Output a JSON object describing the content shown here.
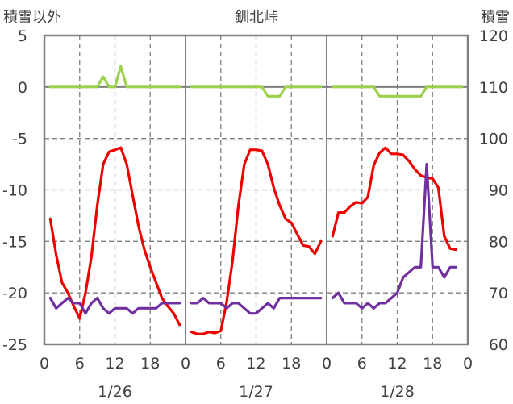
{
  "chart_data": {
    "type": "line",
    "title": "釧北峠",
    "ylabel_left": "積雪以外",
    "ylabel_right": "積雪",
    "ylim_left": [
      -25,
      5
    ],
    "yticks_left": [
      "5",
      "0",
      "-5",
      "-10",
      "-15",
      "-20",
      "-25"
    ],
    "ylim_right": [
      60,
      120
    ],
    "yticks_right": [
      "120",
      "110",
      "100",
      "90",
      "80",
      "70",
      "60"
    ],
    "xlim_hours": [
      0,
      72
    ],
    "xtick_labels": [
      "0",
      "6",
      "12",
      "18",
      "0",
      "6",
      "12",
      "18",
      "0",
      "6",
      "12",
      "18",
      "0"
    ],
    "day_labels": [
      "1/26",
      "1/27",
      "1/28"
    ],
    "grid": true,
    "series": [
      {
        "color": "#ee0000",
        "axis": "left",
        "segments": [
          [
            [
              1,
              -12.8
            ],
            [
              2,
              -16.3
            ],
            [
              3,
              -19
            ],
            [
              4,
              -20
            ],
            [
              5,
              -21.3
            ],
            [
              6,
              -22.5
            ],
            [
              7,
              -20
            ],
            [
              8,
              -16.5
            ],
            [
              9,
              -11.5
            ],
            [
              10,
              -7.5
            ],
            [
              11,
              -6.3
            ],
            [
              12,
              -6.1
            ],
            [
              13,
              -5.9
            ],
            [
              14,
              -7.5
            ],
            [
              15,
              -10.5
            ],
            [
              16,
              -13.5
            ],
            [
              17,
              -15.8
            ],
            [
              18,
              -17.5
            ],
            [
              19,
              -19
            ],
            [
              20,
              -20.5
            ],
            [
              21,
              -21.3
            ],
            [
              22,
              -22
            ],
            [
              23,
              -23.1
            ]
          ],
          [
            [
              25,
              -23.8
            ],
            [
              26,
              -24
            ],
            [
              27,
              -24
            ],
            [
              28,
              -23.8
            ],
            [
              29,
              -23.9
            ],
            [
              30,
              -23.7
            ],
            [
              31,
              -20.9
            ],
            [
              32,
              -16.9
            ],
            [
              33,
              -11.5
            ],
            [
              34,
              -7.5
            ],
            [
              35,
              -6.1
            ],
            [
              36,
              -6.1
            ],
            [
              37,
              -6.2
            ],
            [
              38,
              -7.5
            ],
            [
              39,
              -9.8
            ],
            [
              40,
              -11.5
            ],
            [
              41,
              -12.8
            ],
            [
              42,
              -13.2
            ],
            [
              43,
              -14.3
            ],
            [
              44,
              -15.4
            ],
            [
              45,
              -15.5
            ],
            [
              46,
              -16.2
            ],
            [
              47,
              -15
            ]
          ],
          [
            [
              49,
              -14.5
            ],
            [
              50,
              -12.2
            ],
            [
              51,
              -12.2
            ],
            [
              52,
              -11.6
            ],
            [
              53,
              -11.2
            ],
            [
              54,
              -11.3
            ],
            [
              55,
              -10.7
            ],
            [
              56,
              -7.6
            ],
            [
              57,
              -6.4
            ],
            [
              58,
              -5.9
            ],
            [
              59,
              -6.5
            ],
            [
              60,
              -6.5
            ],
            [
              61,
              -6.6
            ],
            [
              62,
              -7.2
            ],
            [
              63,
              -8
            ],
            [
              64,
              -8.6
            ],
            [
              65,
              -8.8
            ],
            [
              66,
              -8.9
            ],
            [
              67,
              -9.8
            ],
            [
              68,
              -14.5
            ],
            [
              69,
              -15.7
            ],
            [
              70,
              -15.8
            ]
          ]
        ]
      },
      {
        "color": "#9bd14c",
        "axis": "left",
        "segments": [
          [
            [
              1,
              0
            ],
            [
              2,
              0
            ],
            [
              3,
              0
            ],
            [
              4,
              0
            ],
            [
              5,
              0
            ],
            [
              6,
              0
            ],
            [
              7,
              0
            ],
            [
              8,
              0
            ],
            [
              9,
              0
            ],
            [
              10,
              1
            ],
            [
              11,
              0
            ],
            [
              12,
              0
            ],
            [
              13,
              2
            ],
            [
              14,
              0
            ],
            [
              15,
              0
            ],
            [
              16,
              0
            ],
            [
              17,
              0
            ],
            [
              18,
              0
            ],
            [
              19,
              0
            ],
            [
              20,
              0
            ],
            [
              21,
              0
            ],
            [
              22,
              0
            ],
            [
              23,
              0
            ]
          ],
          [
            [
              25,
              0
            ],
            [
              26,
              0
            ],
            [
              27,
              0
            ],
            [
              28,
              0
            ],
            [
              29,
              0
            ],
            [
              30,
              0
            ],
            [
              31,
              0
            ],
            [
              32,
              0
            ],
            [
              33,
              0
            ],
            [
              34,
              0
            ],
            [
              35,
              0
            ],
            [
              36,
              0
            ],
            [
              37,
              0
            ],
            [
              38,
              -0.9
            ],
            [
              39,
              -0.9
            ],
            [
              40,
              -0.9
            ],
            [
              41,
              0
            ],
            [
              42,
              0
            ],
            [
              43,
              0
            ],
            [
              44,
              0
            ],
            [
              45,
              0
            ],
            [
              46,
              0
            ],
            [
              47,
              0
            ]
          ],
          [
            [
              49,
              0
            ],
            [
              50,
              0
            ],
            [
              51,
              0
            ],
            [
              52,
              0
            ],
            [
              53,
              0
            ],
            [
              54,
              0
            ],
            [
              55,
              0
            ],
            [
              56,
              0
            ],
            [
              57,
              -0.9
            ],
            [
              58,
              -0.9
            ],
            [
              59,
              -0.9
            ],
            [
              60,
              -0.9
            ],
            [
              61,
              -0.9
            ],
            [
              62,
              -0.9
            ],
            [
              63,
              -0.9
            ],
            [
              64,
              -0.9
            ],
            [
              65,
              0
            ],
            [
              66,
              0
            ],
            [
              67,
              0
            ],
            [
              68,
              0
            ],
            [
              69,
              0
            ],
            [
              70,
              0
            ],
            [
              71,
              0
            ]
          ]
        ]
      },
      {
        "color": "#7030a0",
        "axis": "right",
        "segments": [
          [
            [
              1,
              69
            ],
            [
              2,
              67
            ],
            [
              3,
              68
            ],
            [
              4,
              69
            ],
            [
              5,
              68
            ],
            [
              6,
              68
            ],
            [
              7,
              66
            ],
            [
              8,
              68
            ],
            [
              9,
              69
            ],
            [
              10,
              67
            ],
            [
              11,
              66
            ],
            [
              12,
              67
            ],
            [
              13,
              67
            ],
            [
              14,
              67
            ],
            [
              15,
              66
            ],
            [
              16,
              67
            ],
            [
              17,
              67
            ],
            [
              18,
              67
            ],
            [
              19,
              67
            ],
            [
              20,
              68
            ],
            [
              21,
              68
            ],
            [
              22,
              68
            ],
            [
              23,
              68
            ]
          ],
          [
            [
              25,
              68
            ],
            [
              26,
              68
            ],
            [
              27,
              69
            ],
            [
              28,
              68
            ],
            [
              29,
              68
            ],
            [
              30,
              68
            ],
            [
              31,
              67
            ],
            [
              32,
              68
            ],
            [
              33,
              68
            ],
            [
              34,
              67
            ],
            [
              35,
              66
            ],
            [
              36,
              66
            ],
            [
              37,
              67
            ],
            [
              38,
              68
            ],
            [
              39,
              67
            ],
            [
              40,
              69
            ],
            [
              41,
              69
            ],
            [
              42,
              69
            ],
            [
              43,
              69
            ],
            [
              44,
              69
            ],
            [
              45,
              69
            ],
            [
              46,
              69
            ],
            [
              47,
              69
            ]
          ],
          [
            [
              49,
              69
            ],
            [
              50,
              70
            ],
            [
              51,
              68
            ],
            [
              52,
              68
            ],
            [
              53,
              68
            ],
            [
              54,
              67
            ],
            [
              55,
              68
            ],
            [
              56,
              67
            ],
            [
              57,
              68
            ],
            [
              58,
              68
            ],
            [
              59,
              69
            ],
            [
              60,
              70
            ],
            [
              61,
              73
            ],
            [
              62,
              74
            ],
            [
              63,
              75
            ],
            [
              64,
              75
            ],
            [
              65,
              95
            ],
            [
              66,
              75
            ],
            [
              67,
              75
            ],
            [
              68,
              73
            ],
            [
              69,
              75
            ],
            [
              70,
              75
            ]
          ]
        ]
      }
    ]
  }
}
